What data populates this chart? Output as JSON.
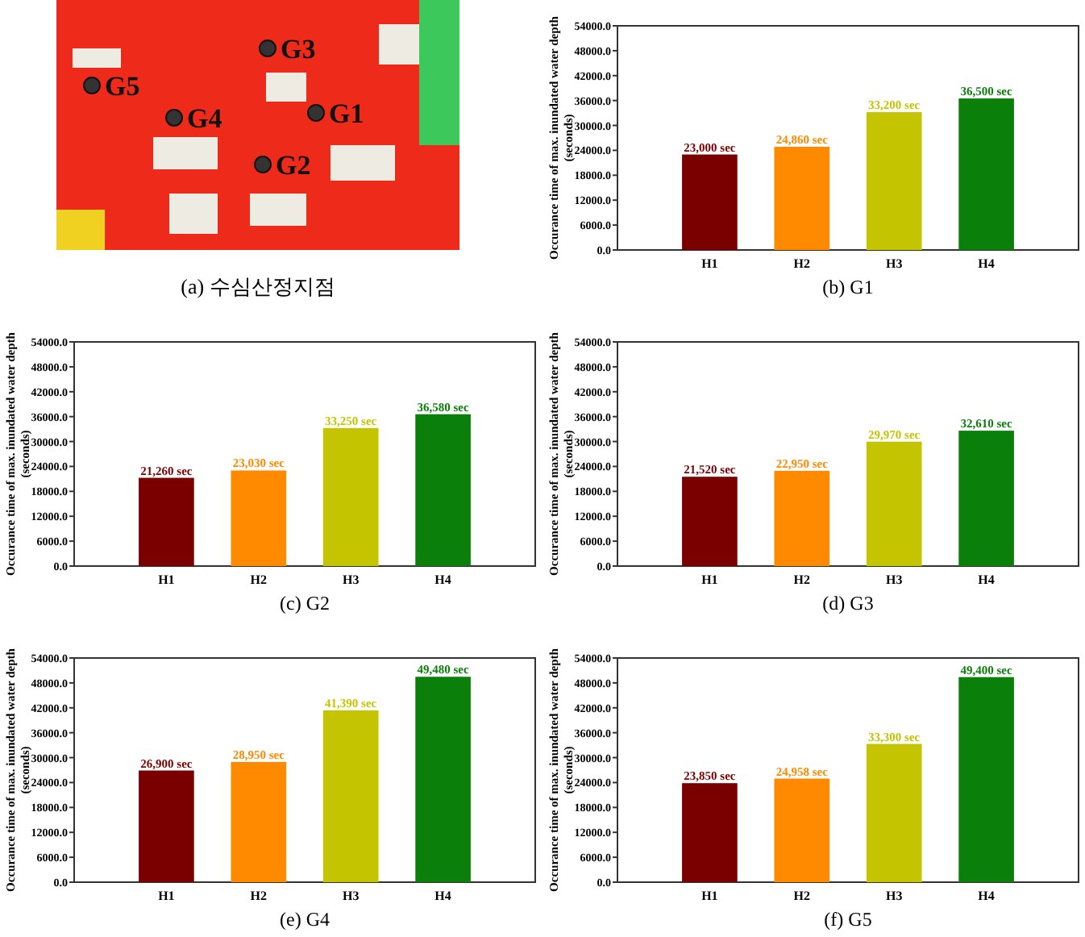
{
  "chart_data": [
    {
      "type": "other",
      "title": "(a) 수심산정지점",
      "annotations": [
        "G1",
        "G2",
        "G3",
        "G4",
        "G5"
      ]
    },
    {
      "type": "bar",
      "title": "(b) G1",
      "ylabel": "Occurance time of max. inundated water depth (seconds)",
      "categories": [
        "H1",
        "H2",
        "H3",
        "H4"
      ],
      "values": [
        23000,
        24860,
        33200,
        36500
      ],
      "colors": [
        "#7a0000",
        "#ff8a00",
        "#c4c400",
        "#0a7f0a"
      ],
      "value_labels": [
        "23,000 sec",
        "24,860 sec",
        "33,200 sec",
        "36,500 sec"
      ],
      "ylim": [
        0,
        54000
      ],
      "yticks": [
        {
          "value": 0,
          "label": "0.0"
        },
        {
          "value": 6000,
          "label": "6000.0"
        },
        {
          "value": 12000,
          "label": "12000.0"
        },
        {
          "value": 18000,
          "label": "18000.0"
        },
        {
          "value": 24000,
          "label": "24000.0"
        },
        {
          "value": 30000,
          "label": "30000.0"
        },
        {
          "value": 36000,
          "label": "36000.0"
        },
        {
          "value": 42000,
          "label": "42000.0"
        },
        {
          "value": 48000,
          "label": "48000.0"
        },
        {
          "value": 54000,
          "label": "54000.0"
        }
      ]
    },
    {
      "type": "bar",
      "title": "(c) G2",
      "ylabel": "Occurance time of max. inundated water depth (seconds)",
      "categories": [
        "H1",
        "H2",
        "H3",
        "H4"
      ],
      "values": [
        21260,
        23030,
        33250,
        36580
      ],
      "colors": [
        "#7a0000",
        "#ff8a00",
        "#c4c400",
        "#0a7f0a"
      ],
      "value_labels": [
        "21,260 sec",
        "23,030 sec",
        "33,250 sec",
        "36,580 sec"
      ],
      "ylim": [
        0,
        54000
      ],
      "yticks": [
        {
          "value": 0,
          "label": "0.0"
        },
        {
          "value": 6000,
          "label": "6000.0"
        },
        {
          "value": 12000,
          "label": "12000.0"
        },
        {
          "value": 18000,
          "label": "18000.0"
        },
        {
          "value": 24000,
          "label": "24000.0"
        },
        {
          "value": 30000,
          "label": "30000.0"
        },
        {
          "value": 36000,
          "label": "36000.0"
        },
        {
          "value": 42000,
          "label": "42000.0"
        },
        {
          "value": 48000,
          "label": "48000.0"
        },
        {
          "value": 54000,
          "label": "54000.0"
        }
      ]
    },
    {
      "type": "bar",
      "title": "(d) G3",
      "ylabel": "Occurance time of max. inundated water depth (seconds)",
      "categories": [
        "H1",
        "H2",
        "H3",
        "H4"
      ],
      "values": [
        21520,
        22950,
        29970,
        32610
      ],
      "colors": [
        "#7a0000",
        "#ff8a00",
        "#c4c400",
        "#0a7f0a"
      ],
      "value_labels": [
        "21,520 sec",
        "22,950 sec",
        "29,970 sec",
        "32,610 sec"
      ],
      "ylim": [
        0,
        54000
      ],
      "yticks": [
        {
          "value": 0,
          "label": "0.0"
        },
        {
          "value": 6000,
          "label": "6000.0"
        },
        {
          "value": 12000,
          "label": "12000.0"
        },
        {
          "value": 18000,
          "label": "18000.0"
        },
        {
          "value": 24000,
          "label": "24000.0"
        },
        {
          "value": 30000,
          "label": "30000.0"
        },
        {
          "value": 36000,
          "label": "36000.0"
        },
        {
          "value": 42000,
          "label": "42000.0"
        },
        {
          "value": 48000,
          "label": "48000.0"
        },
        {
          "value": 54000,
          "label": "54000.0"
        }
      ]
    },
    {
      "type": "bar",
      "title": "(e) G4",
      "ylabel": "Occurance time of max. inundated water depth (seconds)",
      "categories": [
        "H1",
        "H2",
        "H3",
        "H4"
      ],
      "values": [
        26900,
        28950,
        41390,
        49480
      ],
      "colors": [
        "#7a0000",
        "#ff8a00",
        "#c4c400",
        "#0a7f0a"
      ],
      "value_labels": [
        "26,900 sec",
        "28,950 sec",
        "41,390 sec",
        "49,480 sec"
      ],
      "ylim": [
        0,
        54000
      ],
      "yticks": [
        {
          "value": 0,
          "label": "0.0"
        },
        {
          "value": 6000,
          "label": "6000.0"
        },
        {
          "value": 12000,
          "label": "12000.0"
        },
        {
          "value": 18000,
          "label": "18000.0"
        },
        {
          "value": 24000,
          "label": "24000.0"
        },
        {
          "value": 30000,
          "label": "30000.0"
        },
        {
          "value": 36000,
          "label": "36000.0"
        },
        {
          "value": 42000,
          "label": "42000.0"
        },
        {
          "value": 48000,
          "label": "48000.0"
        },
        {
          "value": 54000,
          "label": "54000.0"
        }
      ]
    },
    {
      "type": "bar",
      "title": "(f) G5",
      "ylabel": "Occurance time of max. inundated water depth (seconds)",
      "categories": [
        "H1",
        "H2",
        "H3",
        "H4"
      ],
      "values": [
        23850,
        24958,
        33300,
        49400
      ],
      "colors": [
        "#7a0000",
        "#ff8a00",
        "#c4c400",
        "#0a7f0a"
      ],
      "value_labels": [
        "23,850 sec",
        "24,958 sec",
        "33,300 sec",
        "49,400 sec"
      ],
      "ylim": [
        0,
        54000
      ],
      "yticks": [
        {
          "value": 0,
          "label": "0.0"
        },
        {
          "value": 6000,
          "label": "6000.0"
        },
        {
          "value": 12000,
          "label": "12000.0"
        },
        {
          "value": 18000,
          "label": "18000.0"
        },
        {
          "value": 24000,
          "label": "24000.0"
        },
        {
          "value": 30000,
          "label": "30000.0"
        },
        {
          "value": 36000,
          "label": "36000.0"
        },
        {
          "value": 42000,
          "label": "42000.0"
        },
        {
          "value": 48000,
          "label": "48000.0"
        },
        {
          "value": 54000,
          "label": "54000.0"
        }
      ]
    }
  ]
}
